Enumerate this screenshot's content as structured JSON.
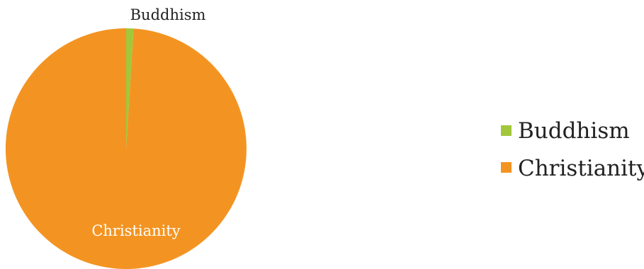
{
  "chart_data": {
    "type": "pie",
    "title": "",
    "labels": [
      "Buddhism",
      "Christianity"
    ],
    "values": [
      1,
      99
    ],
    "colors": [
      "#a2c73b",
      "#f39422"
    ],
    "legend": {
      "position": "right",
      "entries": [
        "Buddhism",
        "Christianity"
      ]
    }
  }
}
